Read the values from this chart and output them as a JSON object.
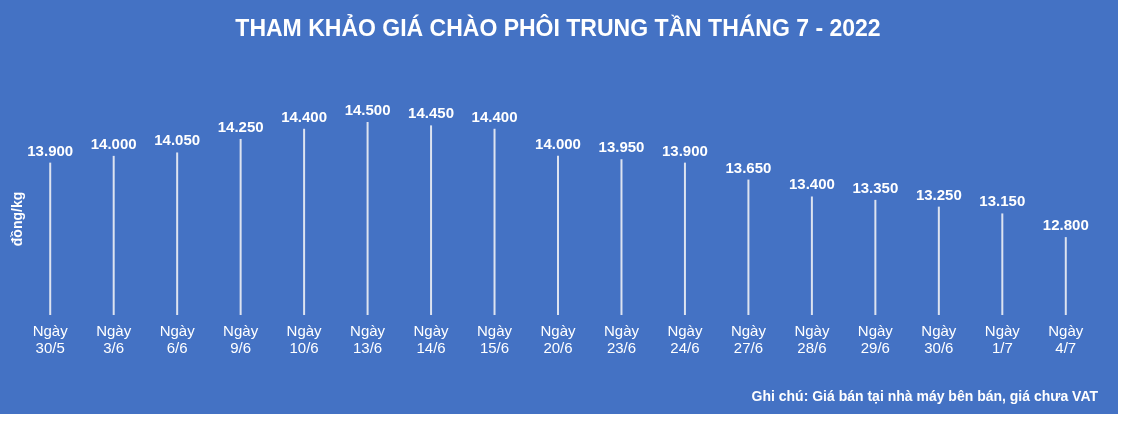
{
  "chart_data": {
    "type": "bar",
    "title": "THAM KHẢO GIÁ CHÀO PHÔI TRUNG TẦN THÁNG 7 - 2022",
    "ylabel": "đồng/kg",
    "categories": [
      "Ngày 30/5",
      "Ngày 3/6",
      "Ngày 6/6",
      "Ngày 9/6",
      "Ngày 10/6",
      "Ngày 13/6",
      "Ngày 14/6",
      "Ngày 15/6",
      "Ngày 20/6",
      "Ngày 23/6",
      "Ngày 24/6",
      "Ngày 27/6",
      "Ngày 28/6",
      "Ngày 29/6",
      "Ngày 30/6",
      "Ngày 1/7",
      "Ngày 4/7"
    ],
    "values": [
      13900,
      14000,
      14050,
      14250,
      14400,
      14500,
      14450,
      14400,
      14000,
      13950,
      13900,
      13650,
      13400,
      13350,
      13250,
      13150,
      12800
    ],
    "value_labels": [
      "13.900",
      "14.000",
      "14.050",
      "14.250",
      "14.400",
      "14.500",
      "14.450",
      "14.400",
      "14.000",
      "13.950",
      "13.900",
      "13.650",
      "13.400",
      "13.350",
      "13.250",
      "13.150",
      "12.800"
    ],
    "color": "#dde3f0",
    "ylim": [
      11650,
      14500
    ],
    "grid": false,
    "annotations": [
      "Ghi chú: Giá bán tại nhà máy bên bán, giá chưa VAT"
    ]
  }
}
